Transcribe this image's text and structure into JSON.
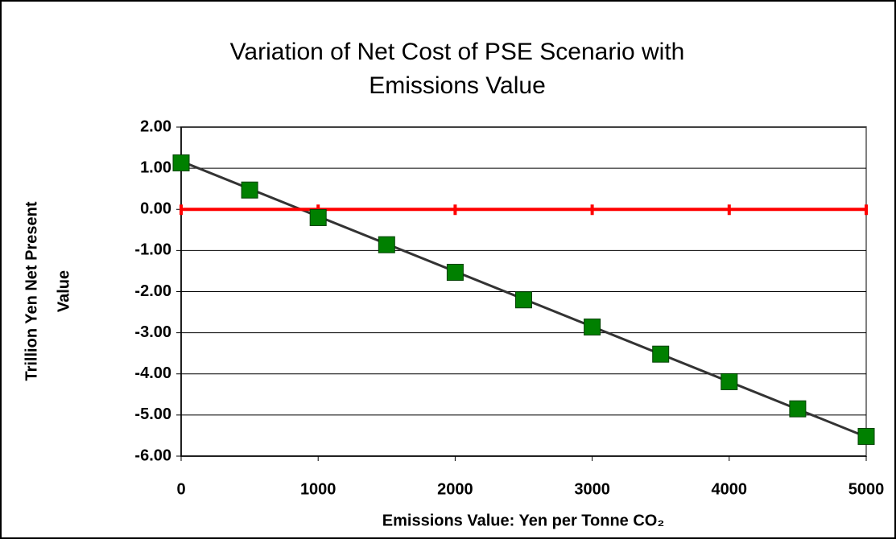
{
  "chart_data": {
    "type": "line",
    "title": [
      "Variation of Net Cost of PSE Scenario with",
      "Emissions Value"
    ],
    "x_label": "Emissions Value: Yen per Tonne CO₂",
    "y_label": [
      "Trillion Yen Net Present",
      "Value"
    ],
    "xlim": [
      0,
      5000
    ],
    "xticks": [
      0,
      1000,
      2000,
      3000,
      4000,
      5000
    ],
    "ylim": [
      -6,
      2
    ],
    "yticks": [
      {
        "value": 2,
        "label": "2.00"
      },
      {
        "value": 1,
        "label": "1.00"
      },
      {
        "value": 0,
        "label": "0.00"
      },
      {
        "value": -1,
        "label": "-1.00"
      },
      {
        "value": -2,
        "label": "-2.00"
      },
      {
        "value": -3,
        "label": "-3.00"
      },
      {
        "value": -4,
        "label": "-4.00"
      },
      {
        "value": -5,
        "label": "-5.00"
      },
      {
        "value": -6,
        "label": "-6.00"
      }
    ],
    "grid": true,
    "series": [
      {
        "color": "#008000",
        "marker": "square",
        "line": false,
        "x": [
          0,
          500,
          1000,
          1500,
          2000,
          2500,
          3000,
          3500,
          4000,
          4500,
          5000
        ],
        "values": [
          1.13,
          0.47,
          -0.2,
          -0.86,
          -1.53,
          -2.2,
          -2.86,
          -3.52,
          -4.19,
          -4.85,
          -5.52
        ]
      },
      {
        "color": "#ff0000",
        "marker": "dash",
        "line": true,
        "x": [
          0,
          1000,
          2000,
          3000,
          4000,
          5000
        ],
        "values": [
          0,
          0,
          0,
          0,
          0,
          0
        ]
      },
      {
        "color": "#333333",
        "marker": "none",
        "line": true,
        "x": [
          0,
          5000
        ],
        "values": [
          1.17,
          -5.53
        ]
      }
    ]
  }
}
